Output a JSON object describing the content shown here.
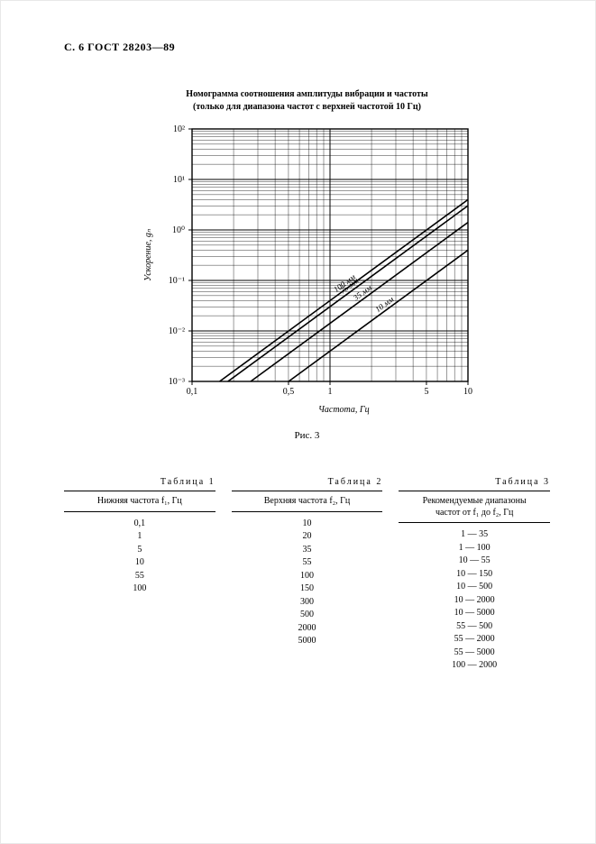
{
  "page_header": "С. 6 ГОСТ 28203—89",
  "chart": {
    "type": "log-log-line",
    "title_line1": "Номограмма соотношения амплитуды вибрации и частоты",
    "title_line2": "(только для диапазона частот с верхней частотой 10 Гц)",
    "xlabel": "Частота, Гц",
    "ylabel": "Ускорение, gₙ",
    "xlim_log10": [
      -1,
      1
    ],
    "ylim_log10": [
      -3,
      2
    ],
    "xtick_labels": [
      "0,1",
      "0,5",
      "1",
      "5",
      "10"
    ],
    "xtick_log10": [
      -1,
      -0.301,
      0,
      0.699,
      1
    ],
    "ytick_labels": [
      "10⁻³",
      "10⁻²",
      "10⁻¹",
      "10⁰",
      "10¹",
      "10²"
    ],
    "ytick_log10": [
      -3,
      -2,
      -1,
      0,
      1,
      2
    ],
    "grid_color": "#000000",
    "minor_grid_color": "#000000",
    "background_color": "#ffffff",
    "line_color": "#000000",
    "line_width": 1.6,
    "series": [
      {
        "label": "10 мм",
        "intercept_log10_at_x1": -2.4
      },
      {
        "label": "35 мм",
        "intercept_log10_at_x1": -1.85
      },
      {
        "label": "75 мм",
        "intercept_log10_at_x1": -1.52
      },
      {
        "label": "100 мм",
        "intercept_log10_at_x1": -1.4
      }
    ],
    "slope_log10": 2.0
  },
  "figure_caption": "Рис. 3",
  "tables": {
    "t1": {
      "caption": "Таблица 1",
      "header": "Нижняя частота f₁, Гц",
      "rows": [
        "0,1",
        "1",
        "5",
        "10",
        "55",
        "100"
      ]
    },
    "t2": {
      "caption": "Таблица 2",
      "header": "Верхняя частота f₂, Гц",
      "rows": [
        "10",
        "20",
        "35",
        "55",
        "100",
        "150",
        "300",
        "500",
        "2000",
        "5000"
      ]
    },
    "t3": {
      "caption": "Таблица 3",
      "header_line1": "Рекомендуемые диапазоны",
      "header_line2": "частот от f₁ до f₂, Гц",
      "rows": [
        "1 — 35",
        "1 — 100",
        "10 — 55",
        "10 — 150",
        "10 — 500",
        "10 — 2000",
        "10 — 5000",
        "55 — 500",
        "55 — 2000",
        "55 — 5000",
        "100 — 2000"
      ]
    }
  }
}
